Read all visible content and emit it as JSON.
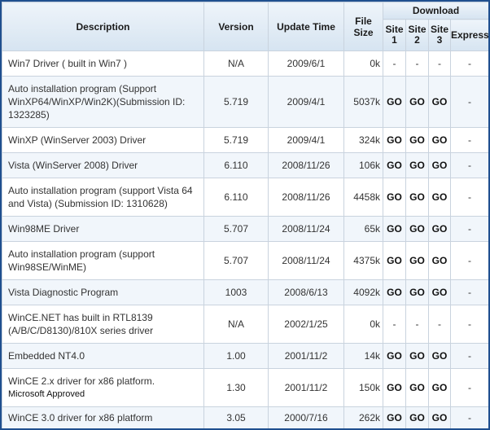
{
  "headers": {
    "description": "Description",
    "version": "Version",
    "update_time": "Update Time",
    "file_size": "File Size",
    "download": "Download",
    "site1": "Site 1",
    "site2": "Site 2",
    "site3": "Site 3",
    "express": "Express"
  },
  "rows": [
    {
      "description": "Win7 Driver ( built in Win7 )",
      "version": "N/A",
      "update": "2009/6/1",
      "size": "0k",
      "site1": "-",
      "site2": "-",
      "site3": "-",
      "express": "-"
    },
    {
      "description": "Auto installation program (Support WinXP64/WinXP/Win2K)(Submission ID: 1323285)",
      "version": "5.719",
      "update": "2009/4/1",
      "size": "5037k",
      "site1": "GO",
      "site2": "GO",
      "site3": "GO",
      "express": "-"
    },
    {
      "description": "WinXP (WinServer 2003) Driver",
      "version": "5.719",
      "update": "2009/4/1",
      "size": "324k",
      "site1": "GO",
      "site2": "GO",
      "site3": "GO",
      "express": "-"
    },
    {
      "description": "Vista (WinServer 2008) Driver",
      "version": "6.110",
      "update": "2008/11/26",
      "size": "106k",
      "site1": "GO",
      "site2": "GO",
      "site3": "GO",
      "express": "-"
    },
    {
      "description": "Auto installation program (support Vista 64 and Vista) (Submission ID: 1310628)",
      "version": "6.110",
      "update": "2008/11/26",
      "size": "4458k",
      "site1": "GO",
      "site2": "GO",
      "site3": "GO",
      "express": "-"
    },
    {
      "description": "Win98ME Driver",
      "version": "5.707",
      "update": "2008/11/24",
      "size": "65k",
      "site1": "GO",
      "site2": "GO",
      "site3": "GO",
      "express": "-"
    },
    {
      "description": "Auto installation program (support Win98SE/WinME)",
      "version": "5.707",
      "update": "2008/11/24",
      "size": "4375k",
      "site1": "GO",
      "site2": "GO",
      "site3": "GO",
      "express": "-"
    },
    {
      "description": "Vista Diagnostic Program",
      "version": "1003",
      "update": "2008/6/13",
      "size": "4092k",
      "site1": "GO",
      "site2": "GO",
      "site3": "GO",
      "express": "-"
    },
    {
      "description": "WinCE.NET has built in RTL8139 (A/B/C/D8130)/810X series driver",
      "version": "N/A",
      "update": "2002/1/25",
      "size": "0k",
      "site1": "-",
      "site2": "-",
      "site3": "-",
      "express": "-"
    },
    {
      "description": "Embedded NT4.0",
      "version": "1.00",
      "update": "2001/11/2",
      "size": "14k",
      "site1": "GO",
      "site2": "GO",
      "site3": "GO",
      "express": "-"
    },
    {
      "description": "WinCE 2.x driver for x86 platform.",
      "note": "Microsoft Approved",
      "version": "1.30",
      "update": "2001/11/2",
      "size": "150k",
      "site1": "GO",
      "site2": "GO",
      "site3": "GO",
      "express": "-"
    },
    {
      "description": "WinCE 3.0 driver for x86 platform",
      "version": "3.05",
      "update": "2000/7/16",
      "size": "262k",
      "site1": "GO",
      "site2": "GO",
      "site3": "GO",
      "express": "-"
    }
  ]
}
